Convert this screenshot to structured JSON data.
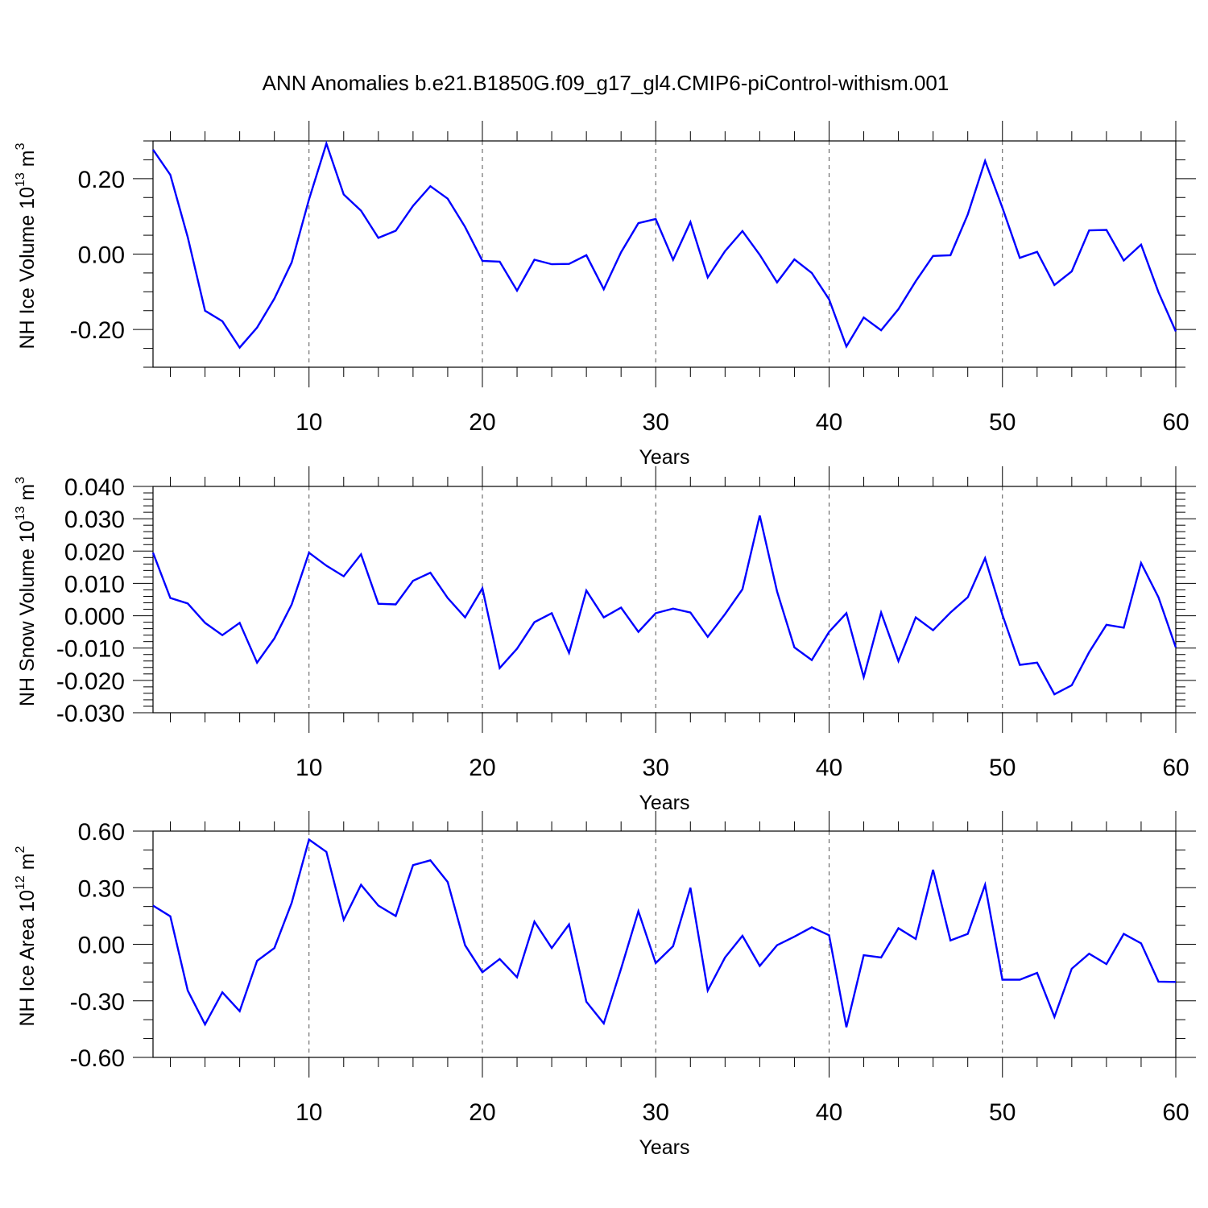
{
  "chart_data": {
    "title": "ANN Anomalies b.e21.B1850G.f09_g17_gl4.CMIP6-piControl-withism.001",
    "line_color": "#0000ff",
    "panels": [
      {
        "type": "line",
        "ylabel_main": "NH Ice Volume 10",
        "ylabel_exp": "13",
        "ylabel_unit": " m",
        "ylabel_unit_exp": "3",
        "xlabel": "Years",
        "xlim": [
          1,
          60
        ],
        "ylim": [
          -0.3,
          0.3
        ],
        "yticks": [
          -0.2,
          0.0,
          0.2
        ],
        "ytick_labels": [
          "-0.20",
          "0.00",
          "0.20"
        ],
        "yminor_step": 0.05,
        "xticks": [
          10,
          20,
          30,
          40,
          50,
          60
        ],
        "xtick_labels": [
          "10",
          "20",
          "30",
          "40",
          "50",
          "60"
        ],
        "x": [
          1,
          2,
          3,
          4,
          5,
          6,
          7,
          8,
          9,
          10,
          11,
          12,
          13,
          14,
          15,
          16,
          17,
          18,
          19,
          20,
          21,
          22,
          23,
          24,
          25,
          26,
          27,
          28,
          29,
          30,
          31,
          32,
          33,
          34,
          35,
          36,
          37,
          38,
          39,
          40,
          41,
          42,
          43,
          44,
          45,
          46,
          47,
          48,
          49,
          50,
          51,
          52,
          53,
          54,
          55,
          56,
          57,
          58,
          59,
          60
        ],
        "values": [
          0.277,
          0.21,
          0.045,
          -0.15,
          -0.178,
          -0.248,
          -0.195,
          -0.118,
          -0.022,
          0.145,
          0.293,
          0.158,
          0.115,
          0.043,
          0.062,
          0.128,
          0.18,
          0.147,
          0.072,
          -0.018,
          -0.02,
          -0.097,
          -0.015,
          -0.027,
          -0.026,
          -0.003,
          -0.093,
          0.005,
          0.082,
          0.093,
          -0.015,
          0.085,
          -0.062,
          0.008,
          0.061,
          -0.002,
          -0.075,
          -0.014,
          -0.05,
          -0.12,
          -0.245,
          -0.168,
          -0.202,
          -0.146,
          -0.072,
          -0.005,
          -0.003,
          0.105,
          0.247,
          0.123,
          -0.01,
          0.006,
          -0.082,
          -0.046,
          0.063,
          0.064,
          -0.017,
          0.025,
          -0.101,
          -0.205
        ]
      },
      {
        "type": "line",
        "ylabel_main": "NH Snow Volume 10",
        "ylabel_exp": "13",
        "ylabel_unit": " m",
        "ylabel_unit_exp": "3",
        "xlabel": "Years",
        "xlim": [
          1,
          60
        ],
        "ylim": [
          -0.03,
          0.04
        ],
        "yticks": [
          -0.03,
          -0.02,
          -0.01,
          0.0,
          0.01,
          0.02,
          0.03,
          0.04
        ],
        "ytick_labels": [
          "-0.030",
          "-0.020",
          "-0.010",
          "0.000",
          "0.010",
          "0.020",
          "0.030",
          "0.040"
        ],
        "yminor_step": 0.002,
        "xticks": [
          10,
          20,
          30,
          40,
          50,
          60
        ],
        "xtick_labels": [
          "10",
          "20",
          "30",
          "40",
          "50",
          "60"
        ],
        "x": [
          1,
          2,
          3,
          4,
          5,
          6,
          7,
          8,
          9,
          10,
          11,
          12,
          13,
          14,
          15,
          16,
          17,
          18,
          19,
          20,
          21,
          22,
          23,
          24,
          25,
          26,
          27,
          28,
          29,
          30,
          31,
          32,
          33,
          34,
          35,
          36,
          37,
          38,
          39,
          40,
          41,
          42,
          43,
          44,
          45,
          46,
          47,
          48,
          49,
          50,
          51,
          52,
          53,
          54,
          55,
          56,
          57,
          58,
          59,
          60
        ],
        "values": [
          0.0195,
          0.0055,
          0.0038,
          -0.0022,
          -0.006,
          -0.0022,
          -0.0145,
          -0.007,
          0.0035,
          0.0195,
          0.0155,
          0.0122,
          0.019,
          0.0037,
          0.0035,
          0.0108,
          0.0133,
          0.0055,
          -0.0005,
          0.0085,
          -0.0162,
          -0.0102,
          -0.002,
          0.0008,
          -0.0115,
          0.0078,
          -0.0005,
          0.0025,
          -0.005,
          0.0008,
          0.0022,
          0.001,
          -0.0065,
          0.0005,
          0.0082,
          0.031,
          0.0075,
          -0.0098,
          -0.0137,
          -0.005,
          0.0008,
          -0.019,
          0.001,
          -0.014,
          -0.0005,
          -0.0045,
          0.001,
          0.0057,
          0.0178,
          0.0003,
          -0.0152,
          -0.0145,
          -0.0243,
          -0.0215,
          -0.0113,
          -0.0028,
          -0.0037,
          0.0163,
          0.0057,
          -0.0098
        ]
      },
      {
        "type": "line",
        "ylabel_main": "NH Ice Area 10",
        "ylabel_exp": "12",
        "ylabel_unit": " m",
        "ylabel_unit_exp": "2",
        "xlabel": "Years",
        "xlim": [
          1,
          60
        ],
        "ylim": [
          -0.6,
          0.6
        ],
        "yticks": [
          -0.6,
          -0.3,
          0.0,
          0.3,
          0.6
        ],
        "ytick_labels": [
          "-0.60",
          "-0.30",
          "0.00",
          "0.30",
          "0.60"
        ],
        "yminor_step": 0.1,
        "xticks": [
          10,
          20,
          30,
          40,
          50,
          60
        ],
        "xtick_labels": [
          "10",
          "20",
          "30",
          "40",
          "50",
          "60"
        ],
        "x": [
          1,
          2,
          3,
          4,
          5,
          6,
          7,
          8,
          9,
          10,
          11,
          12,
          13,
          14,
          15,
          16,
          17,
          18,
          19,
          20,
          21,
          22,
          23,
          24,
          25,
          26,
          27,
          28,
          29,
          30,
          31,
          32,
          33,
          34,
          35,
          36,
          37,
          38,
          39,
          40,
          41,
          42,
          43,
          44,
          45,
          46,
          47,
          48,
          49,
          50,
          51,
          52,
          53,
          54,
          55,
          56,
          57,
          58,
          59,
          60
        ],
        "values": [
          0.205,
          0.148,
          -0.245,
          -0.425,
          -0.255,
          -0.355,
          -0.088,
          -0.02,
          0.22,
          0.555,
          0.49,
          0.13,
          0.315,
          0.205,
          0.15,
          0.42,
          0.445,
          0.33,
          -0.005,
          -0.148,
          -0.078,
          -0.175,
          0.12,
          -0.02,
          0.105,
          -0.305,
          -0.42,
          -0.13,
          0.175,
          -0.1,
          -0.01,
          0.3,
          -0.245,
          -0.07,
          0.045,
          -0.115,
          -0.005,
          0.04,
          0.09,
          0.048,
          -0.44,
          -0.058,
          -0.07,
          0.085,
          0.028,
          0.395,
          0.02,
          0.055,
          0.315,
          -0.188,
          -0.188,
          -0.152,
          -0.385,
          -0.13,
          -0.05,
          -0.105,
          0.055,
          0.005,
          -0.198,
          -0.2
        ]
      }
    ]
  }
}
